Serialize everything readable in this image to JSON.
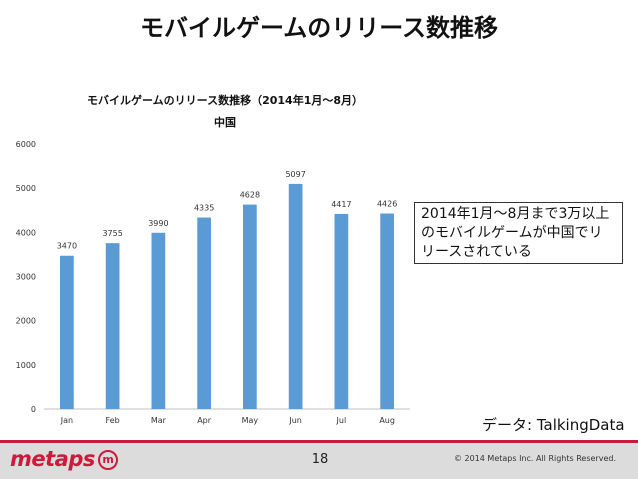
{
  "slide": {
    "title": "モバイルゲームのリリース数推移",
    "callout": "2014年1月〜8月まで3万以上のモバイルゲームが中国でリリースされている",
    "source": "データ: TalkingData",
    "page_number": "18",
    "copyright": "© 2014 Metaps Inc. All Rights Reserved.",
    "logo_text": "metaps",
    "logo_badge": "m"
  },
  "colors": {
    "bar": "#5b9bd5",
    "brand": "#d0193a"
  },
  "chart_data": {
    "type": "bar",
    "title": "モバイルゲームのリリース数推移（2014年1月〜8月）",
    "subtitle": "中国",
    "categories": [
      "Jan",
      "Feb",
      "Mar",
      "Apr",
      "May",
      "Jun",
      "Jul",
      "Aug"
    ],
    "values": [
      3470,
      3755,
      3990,
      4335,
      4628,
      5097,
      4417,
      4426
    ],
    "ylim": [
      0,
      6000
    ],
    "yticks": [
      0,
      1000,
      2000,
      3000,
      4000,
      5000,
      6000
    ],
    "xlabel": "",
    "ylabel": "",
    "grid": false,
    "data_labels": true
  }
}
